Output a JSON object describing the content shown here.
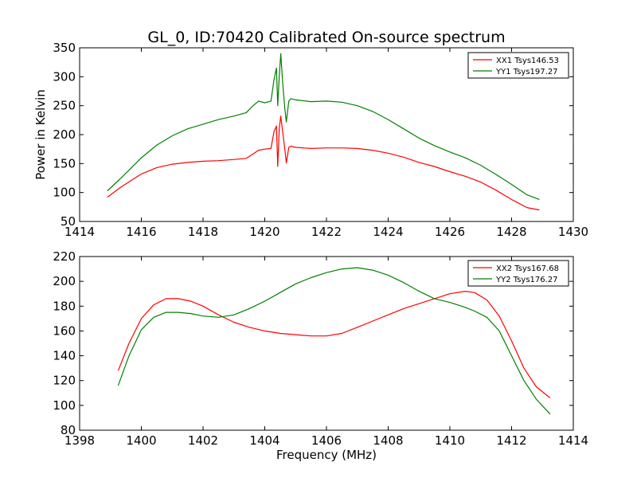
{
  "figure_title": "GL_0, ID:70420 Calibrated On-source spectrum",
  "chart_data": [
    {
      "type": "line",
      "title": "GL_0, ID:70420 Calibrated On-source spectrum",
      "xlabel": "",
      "ylabel": "Power in Kelvin",
      "xlim": [
        1414,
        1430
      ],
      "ylim": [
        50,
        350
      ],
      "xticks": [
        "1414",
        "1416",
        "1418",
        "1420",
        "1422",
        "1424",
        "1426",
        "1428",
        "1430"
      ],
      "yticks": [
        "50",
        "100",
        "150",
        "200",
        "250",
        "300",
        "350"
      ],
      "grid": false,
      "legend_position": "top-right",
      "series": [
        {
          "name": "XX1 Tsys146.53",
          "color": "#ff0000",
          "x": [
            1414.9,
            1415.3,
            1415.7,
            1416.0,
            1416.5,
            1417.0,
            1417.5,
            1418.0,
            1418.5,
            1419.0,
            1419.4,
            1419.6,
            1419.8,
            1420.0,
            1420.2,
            1420.3,
            1420.38,
            1420.42,
            1420.47,
            1420.52,
            1420.58,
            1420.65,
            1420.7,
            1420.78,
            1420.85,
            1421.0,
            1421.5,
            1422.0,
            1422.5,
            1423.0,
            1423.5,
            1424.0,
            1424.5,
            1425.0,
            1425.5,
            1426.0,
            1426.5,
            1427.0,
            1427.5,
            1428.0,
            1428.5,
            1428.9
          ],
          "y": [
            92,
            108,
            122,
            132,
            143,
            149,
            152,
            154,
            155,
            157,
            159,
            166,
            173,
            175,
            176,
            205,
            215,
            145,
            210,
            232,
            205,
            175,
            151,
            178,
            180,
            178,
            176,
            177,
            177,
            176,
            173,
            168,
            161,
            152,
            145,
            136,
            128,
            118,
            104,
            88,
            74,
            70
          ]
        },
        {
          "name": "YY1 Tsys197.27",
          "color": "#008000",
          "x": [
            1414.9,
            1415.3,
            1415.7,
            1416.0,
            1416.5,
            1417.0,
            1417.5,
            1418.0,
            1418.5,
            1419.0,
            1419.4,
            1419.6,
            1419.8,
            1420.0,
            1420.2,
            1420.3,
            1420.38,
            1420.42,
            1420.47,
            1420.52,
            1420.58,
            1420.65,
            1420.7,
            1420.78,
            1420.85,
            1421.0,
            1421.5,
            1422.0,
            1422.5,
            1423.0,
            1423.5,
            1424.0,
            1424.5,
            1425.0,
            1425.5,
            1426.0,
            1426.5,
            1427.0,
            1427.5,
            1428.0,
            1428.5,
            1428.9
          ],
          "y": [
            103,
            123,
            144,
            160,
            182,
            198,
            210,
            218,
            226,
            232,
            238,
            249,
            258,
            255,
            258,
            295,
            315,
            250,
            300,
            340,
            290,
            245,
            222,
            258,
            262,
            260,
            257,
            258,
            256,
            250,
            240,
            226,
            210,
            194,
            181,
            170,
            160,
            147,
            131,
            114,
            96,
            88
          ]
        }
      ]
    },
    {
      "type": "line",
      "title": "",
      "xlabel": "Frequency (MHz)",
      "ylabel": "",
      "xlim": [
        1398,
        1414
      ],
      "ylim": [
        80,
        220
      ],
      "xticks": [
        "1398",
        "1400",
        "1402",
        "1404",
        "1406",
        "1408",
        "1410",
        "1412",
        "1414"
      ],
      "yticks": [
        "80",
        "100",
        "120",
        "140",
        "160",
        "180",
        "200",
        "220"
      ],
      "grid": false,
      "legend_position": "top-right",
      "series": [
        {
          "name": "XX2 Tsys167.68",
          "color": "#ff0000",
          "x": [
            1399.25,
            1399.6,
            1400.0,
            1400.4,
            1400.8,
            1401.2,
            1401.6,
            1402.0,
            1402.5,
            1403.0,
            1403.5,
            1404.0,
            1404.5,
            1405.0,
            1405.5,
            1406.0,
            1406.5,
            1407.0,
            1407.5,
            1408.0,
            1408.5,
            1409.0,
            1409.5,
            1410.0,
            1410.5,
            1410.8,
            1411.2,
            1411.6,
            1412.0,
            1412.4,
            1412.8,
            1413.25
          ],
          "y": [
            128,
            150,
            170,
            181,
            186,
            186,
            184,
            180,
            173,
            167,
            163,
            160,
            158,
            157,
            156,
            156,
            158,
            163,
            168,
            173,
            178,
            182,
            186,
            190,
            192,
            191,
            185,
            172,
            152,
            130,
            115,
            106
          ]
        },
        {
          "name": "YY2 Tsys176.27",
          "color": "#008000",
          "x": [
            1399.25,
            1399.6,
            1400.0,
            1400.4,
            1400.8,
            1401.2,
            1401.6,
            1402.0,
            1402.5,
            1403.0,
            1403.5,
            1404.0,
            1404.5,
            1405.0,
            1405.5,
            1406.0,
            1406.5,
            1407.0,
            1407.5,
            1408.0,
            1408.5,
            1409.0,
            1409.5,
            1410.0,
            1410.5,
            1410.8,
            1411.2,
            1411.6,
            1412.0,
            1412.4,
            1412.8,
            1413.25
          ],
          "y": [
            116,
            140,
            161,
            171,
            175,
            175,
            174,
            172,
            171,
            173,
            178,
            184,
            191,
            198,
            203,
            207,
            210,
            211,
            209,
            205,
            199,
            192,
            186,
            183,
            179,
            176,
            171,
            160,
            140,
            120,
            105,
            93
          ]
        }
      ]
    }
  ]
}
